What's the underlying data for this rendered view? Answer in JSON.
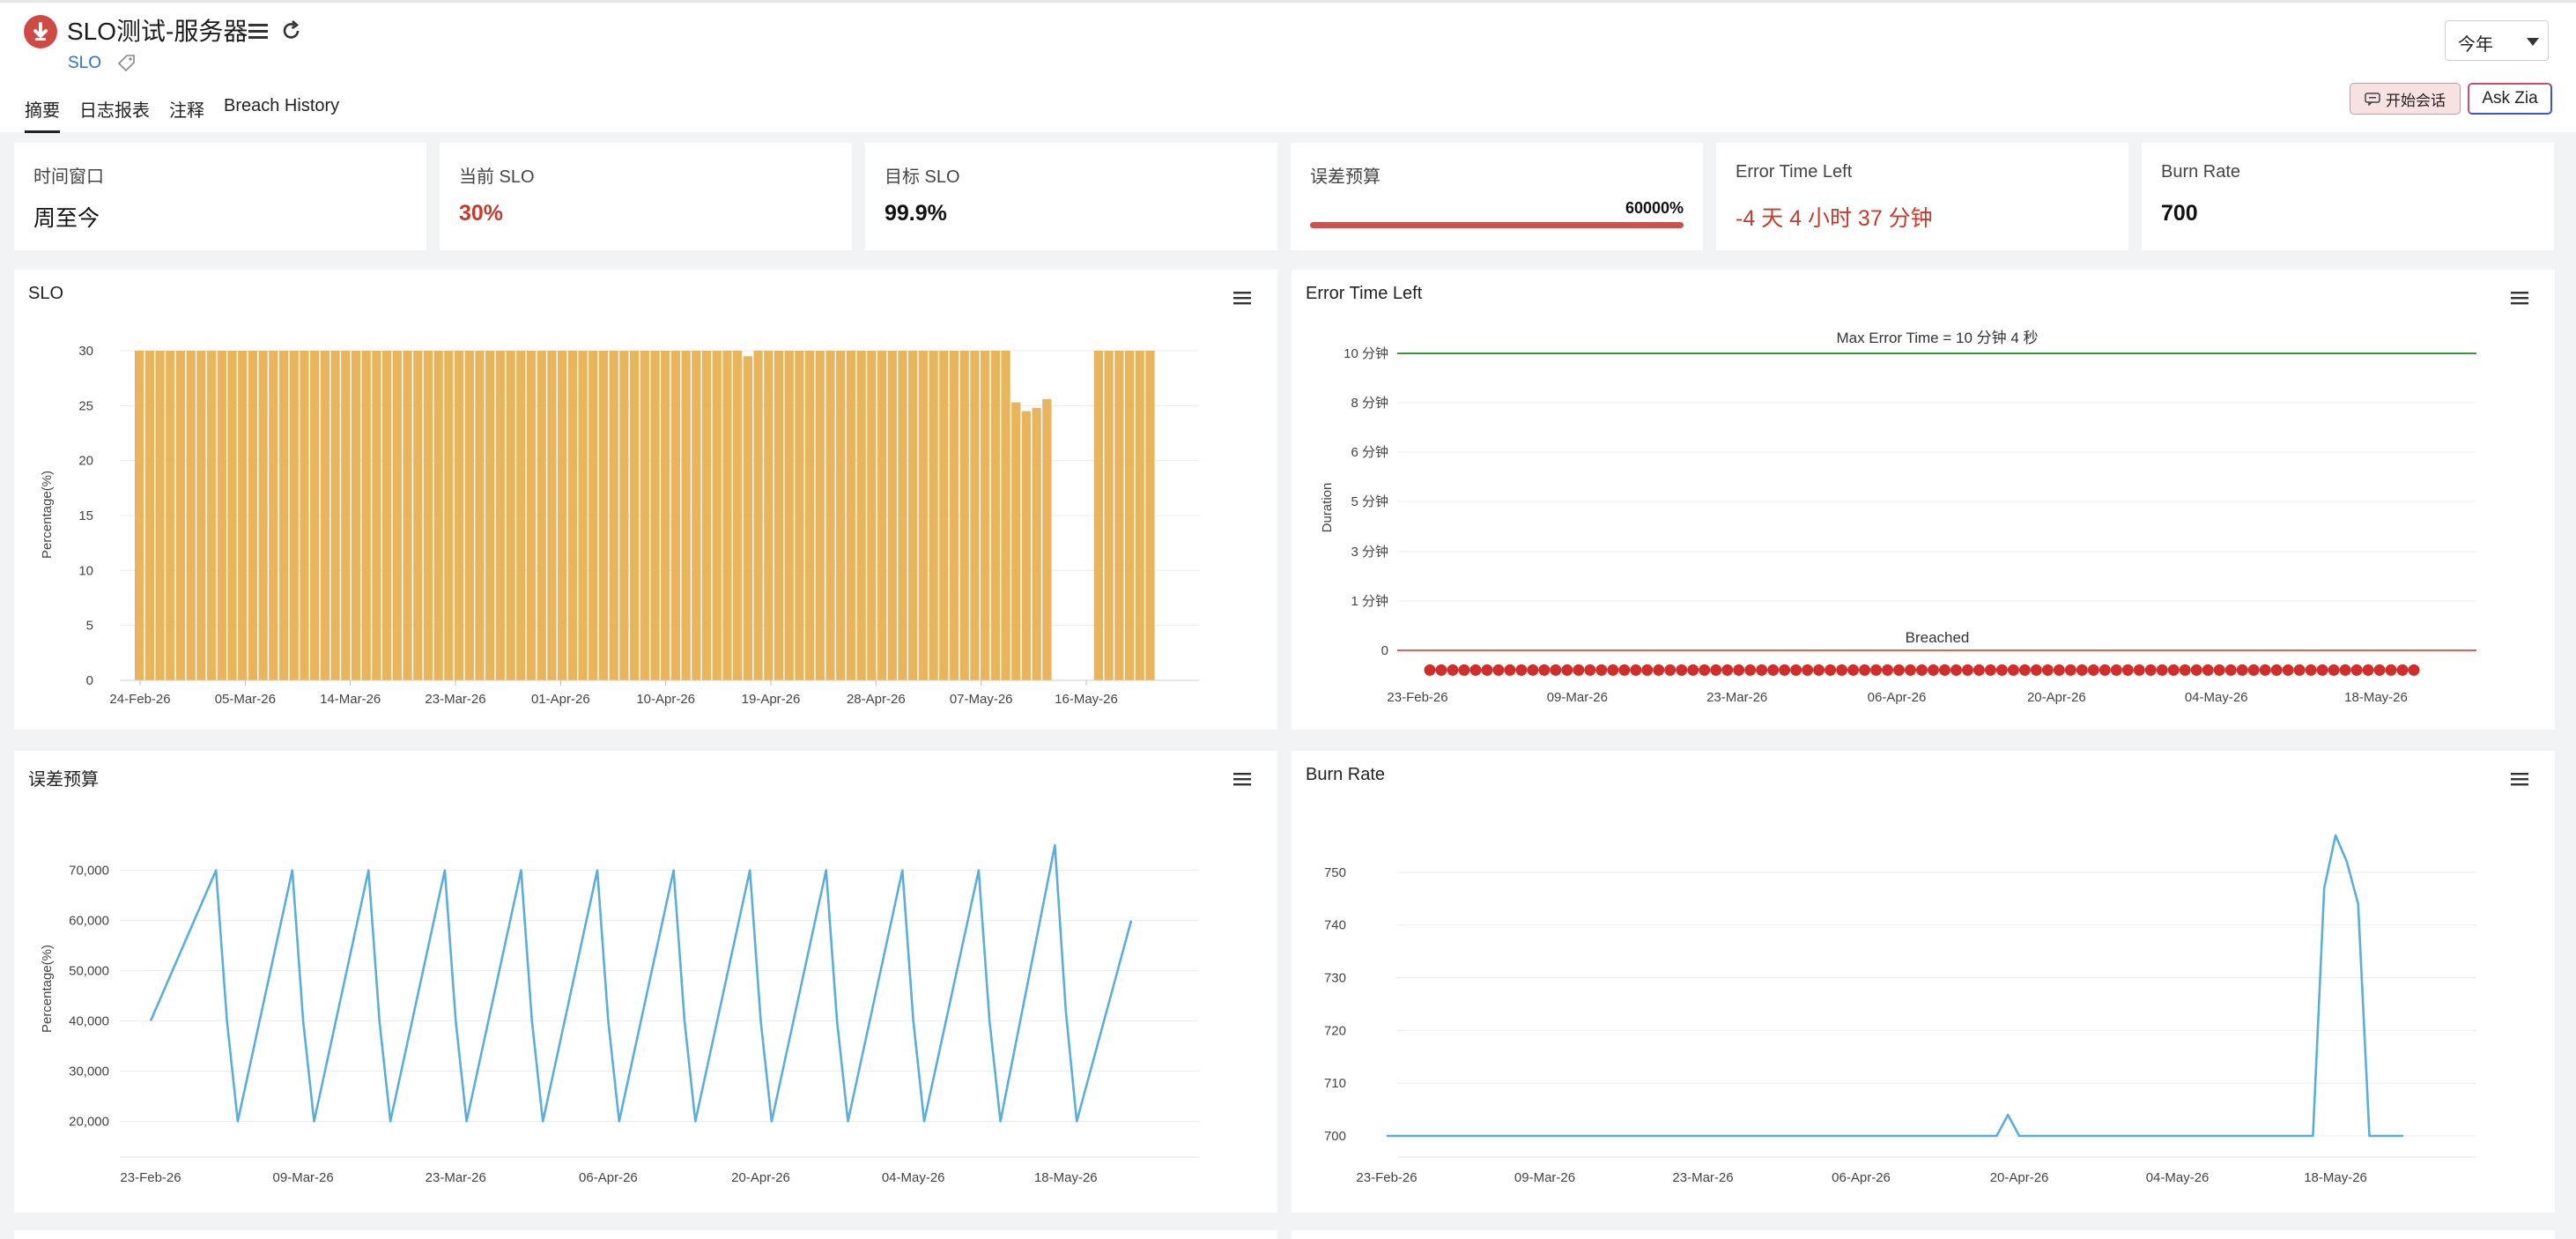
{
  "header": {
    "title": "SLO测试-服务器",
    "type_link": "SLO",
    "period": "今年",
    "chat_button": "开始会话",
    "zia_button": "Ask Zia"
  },
  "tabs": [
    "摘要",
    "日志报表",
    "注释",
    "Breach History"
  ],
  "kpis": {
    "time_window": {
      "label": "时间窗口",
      "value": "周至今"
    },
    "current_slo": {
      "label": "当前 SLO",
      "value": "30%"
    },
    "target_slo": {
      "label": "目标 SLO",
      "value": "99.9%"
    },
    "error_budget": {
      "label": "误差预算",
      "value": "60000%"
    },
    "error_time_left": {
      "label": "Error Time Left",
      "value": "-4 天 4 小时 37 分钟"
    },
    "burn_rate": {
      "label": "Burn Rate",
      "value": "700"
    }
  },
  "colors": {
    "bar": "#e9b55c",
    "line": "#5aaedc",
    "breach": "#cf2e2a",
    "max_line": "#3a9a36",
    "danger": "#c63b2c"
  },
  "chart_data": [
    {
      "id": "slo",
      "type": "bar",
      "title": "SLO",
      "ylabel": "Percentage(%)",
      "ylim": [
        0,
        30
      ],
      "yticks": [
        0,
        5,
        10,
        15,
        20,
        25,
        30
      ],
      "xtick_labels": [
        "24-Feb-26",
        "05-Mar-26",
        "14-Mar-26",
        "23-Mar-26",
        "01-Apr-26",
        "10-Apr-26",
        "19-Apr-26",
        "28-Apr-26",
        "07-May-26",
        "16-May-26"
      ],
      "values": [
        30,
        30,
        30,
        30,
        30,
        30,
        30,
        30,
        30,
        30,
        30,
        30,
        30,
        30,
        30,
        30,
        30,
        30,
        30,
        30,
        30,
        30,
        30,
        30,
        30,
        30,
        30,
        30,
        30,
        30,
        30,
        30,
        30,
        30,
        30,
        30,
        30,
        30,
        30,
        30,
        30,
        30,
        30,
        30,
        30,
        30,
        30,
        30,
        30,
        30,
        30,
        30,
        30,
        30,
        30,
        30,
        30,
        30,
        30,
        29.5,
        30,
        30,
        30,
        30,
        30,
        30,
        30,
        30,
        30,
        30,
        30,
        30,
        30,
        30,
        30,
        30,
        30,
        30,
        30,
        30,
        30,
        30,
        30,
        30,
        30,
        25.3,
        24.5,
        24.8,
        25.6,
        0,
        0,
        0,
        0,
        30,
        30,
        30,
        30,
        30,
        30
      ]
    },
    {
      "id": "error_time_left",
      "type": "line",
      "title": "Error Time Left",
      "ylabel": "Duration",
      "ytick_labels": [
        "0",
        "1 分钟",
        "3 分钟",
        "5 分钟",
        "6 分钟",
        "8 分钟",
        "10 分钟"
      ],
      "xtick_labels": [
        "23-Feb-26",
        "09-Mar-26",
        "23-Mar-26",
        "06-Apr-26",
        "20-Apr-26",
        "04-May-26",
        "18-May-26"
      ],
      "max_annotation": "Max Error Time = 10 分钟 4 秒",
      "breach_annotation": "Breached",
      "points_count": 87,
      "value_minutes": -0.4
    },
    {
      "id": "error_budget",
      "type": "line",
      "title": "误差预算",
      "ylabel": "Percentage(%)",
      "ylim": [
        15000,
        78000
      ],
      "yticks": [
        20000,
        30000,
        40000,
        50000,
        60000,
        70000
      ],
      "ytick_labels": [
        "20,000",
        "30,000",
        "40,000",
        "50,000",
        "60,000",
        "70,000"
      ],
      "xtick_labels": [
        "23-Feb-26",
        "09-Mar-26",
        "23-Mar-26",
        "06-Apr-26",
        "20-Apr-26",
        "04-May-26",
        "18-May-26"
      ],
      "x_days": [
        0,
        6,
        7,
        8,
        13,
        14,
        15,
        20,
        21,
        22,
        27,
        28,
        29,
        34,
        35,
        36,
        41,
        42,
        43,
        48,
        49,
        50,
        55,
        56,
        57,
        62,
        63,
        64,
        69,
        70,
        71,
        76,
        77,
        78,
        83,
        84,
        85,
        90
      ],
      "values": [
        40000,
        70000,
        40000,
        20000,
        70000,
        40000,
        20000,
        70000,
        40000,
        20000,
        70000,
        40000,
        20000,
        70000,
        40000,
        20000,
        70000,
        40000,
        20000,
        70000,
        40000,
        20000,
        70000,
        40000,
        20000,
        70000,
        40000,
        20000,
        70000,
        40000,
        20000,
        70000,
        40000,
        20000,
        75000,
        42000,
        20000,
        60000
      ]
    },
    {
      "id": "burn_rate",
      "type": "line",
      "title": "Burn Rate",
      "ylim": [
        698,
        758
      ],
      "yticks": [
        700,
        710,
        720,
        730,
        740,
        750
      ],
      "xtick_labels": [
        "23-Feb-26",
        "09-Mar-26",
        "23-Mar-26",
        "06-Apr-26",
        "20-Apr-26",
        "04-May-26",
        "18-May-26"
      ],
      "x_days": [
        0,
        54,
        55,
        56,
        57,
        82,
        83,
        84,
        85,
        86,
        87,
        88,
        89,
        90
      ],
      "values": [
        700,
        700,
        704,
        700,
        700,
        700,
        747,
        757,
        752,
        744,
        700,
        700,
        700,
        700
      ]
    }
  ]
}
